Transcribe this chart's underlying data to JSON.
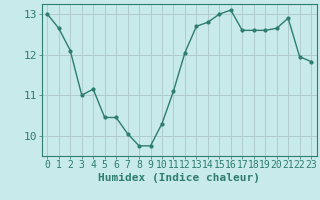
{
  "x": [
    0,
    1,
    2,
    3,
    4,
    5,
    6,
    7,
    8,
    9,
    10,
    11,
    12,
    13,
    14,
    15,
    16,
    17,
    18,
    19,
    20,
    21,
    22,
    23
  ],
  "y": [
    13.0,
    12.65,
    12.1,
    11.0,
    11.15,
    10.45,
    10.45,
    10.05,
    9.75,
    9.75,
    10.3,
    11.1,
    12.05,
    12.7,
    12.8,
    13.0,
    13.1,
    12.6,
    12.6,
    12.6,
    12.65,
    12.9,
    11.95,
    11.83
  ],
  "line_color": "#2e7d6e",
  "marker_color": "#2e7d6e",
  "bg_color": "#c8eaea",
  "grid_color": "#b0cccc",
  "axis_color": "#2e7d6e",
  "xlabel": "Humidex (Indice chaleur)",
  "xlim": [
    -0.5,
    23.5
  ],
  "ylim": [
    9.5,
    13.25
  ],
  "yticks": [
    10,
    11,
    12,
    13
  ],
  "xticks": [
    0,
    1,
    2,
    3,
    4,
    5,
    6,
    7,
    8,
    9,
    10,
    11,
    12,
    13,
    14,
    15,
    16,
    17,
    18,
    19,
    20,
    21,
    22,
    23
  ],
  "tick_fontsize": 7,
  "xlabel_fontsize": 8
}
